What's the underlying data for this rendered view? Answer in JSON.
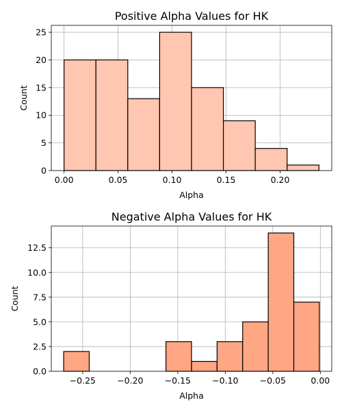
{
  "chart_data": [
    {
      "type": "bar",
      "title": "Positive Alpha Values for HK",
      "xlabel": "Alpha",
      "ylabel": "Count",
      "grid": true,
      "color": "#FFC6B1",
      "edge_color": "#000000",
      "bin_edges": [
        0.0,
        0.0295,
        0.059,
        0.0885,
        0.118,
        0.1475,
        0.177,
        0.2065,
        0.236
      ],
      "values": [
        20,
        20,
        13,
        25,
        15,
        9,
        4,
        1
      ],
      "xlim": [
        -0.0118,
        0.2478
      ],
      "ylim": [
        0,
        26.25
      ],
      "xticks": [
        0.0,
        0.05,
        0.1,
        0.15,
        0.2
      ],
      "xtick_labels": [
        "0.00",
        "0.05",
        "0.10",
        "0.15",
        "0.20"
      ],
      "yticks": [
        0,
        5,
        10,
        15,
        20,
        25
      ],
      "ytick_labels": [
        "0",
        "5",
        "10",
        "15",
        "20",
        "25"
      ]
    },
    {
      "type": "bar",
      "title": "Negative Alpha Values for HK",
      "xlabel": "Alpha",
      "ylabel": "Count",
      "grid": true,
      "color": "#FFA684",
      "edge_color": "#000000",
      "bin_edges": [
        -0.27,
        -0.2431,
        -0.2162,
        -0.1893,
        -0.1624,
        -0.1355,
        -0.1086,
        -0.0817,
        -0.0548,
        -0.0279,
        -0.001
      ],
      "values": [
        2,
        0,
        0,
        0,
        3,
        1,
        3,
        5,
        14,
        7
      ],
      "xlim": [
        -0.283,
        0.012
      ],
      "ylim": [
        0,
        14.7
      ],
      "xticks": [
        -0.25,
        -0.2,
        -0.15,
        -0.1,
        -0.05,
        0.0
      ],
      "xtick_labels": [
        "−0.25",
        "−0.20",
        "−0.15",
        "−0.10",
        "−0.05",
        "0.00"
      ],
      "yticks": [
        0,
        2.5,
        5.0,
        7.5,
        10.0,
        12.5
      ],
      "ytick_labels": [
        "0.0",
        "2.5",
        "5.0",
        "7.5",
        "10.0",
        "12.5"
      ]
    }
  ]
}
